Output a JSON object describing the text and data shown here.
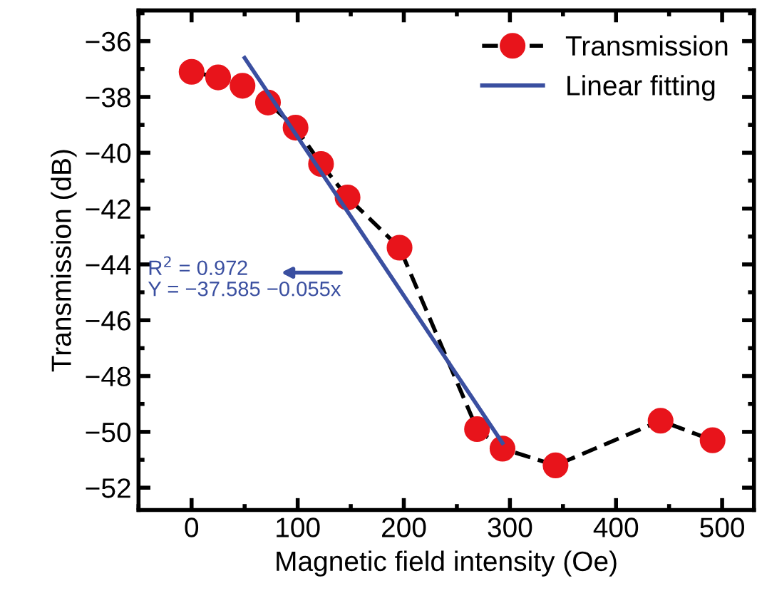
{
  "chart_data": {
    "type": "line",
    "xlabel": "Magnetic field intensity (Oe)",
    "ylabel": "Transmission (dB)",
    "xlim": [
      -50,
      530
    ],
    "ylim": [
      -52.8,
      -34.9
    ],
    "xticks": [
      0,
      100,
      200,
      300,
      400,
      500
    ],
    "yticks": [
      -36,
      -38,
      -40,
      -42,
      -44,
      -46,
      -48,
      -50,
      -52
    ],
    "legend": "top right",
    "grid": false,
    "series": [
      {
        "name": "Transmission",
        "color": "#e8141b",
        "marker": "circle",
        "line_style": "dashed",
        "x": [
          0,
          25,
          48,
          72,
          98,
          122,
          147,
          196,
          269,
          293,
          343,
          442,
          491
        ],
        "values": [
          -37.1,
          -37.3,
          -37.6,
          -38.2,
          -39.1,
          -40.4,
          -41.6,
          -43.4,
          -49.9,
          -50.6,
          -51.2,
          -49.6,
          -50.3
        ]
      },
      {
        "name": "Linear fitting",
        "color": "#3a4fa0",
        "marker": "none",
        "line_style": "solid",
        "x": [
          50,
          293
        ],
        "values": [
          -36.6,
          -50.4
        ]
      }
    ],
    "annotations": [
      "R$^{2}$ = 0.972\nY = −37.585 −0.055x"
    ]
  }
}
